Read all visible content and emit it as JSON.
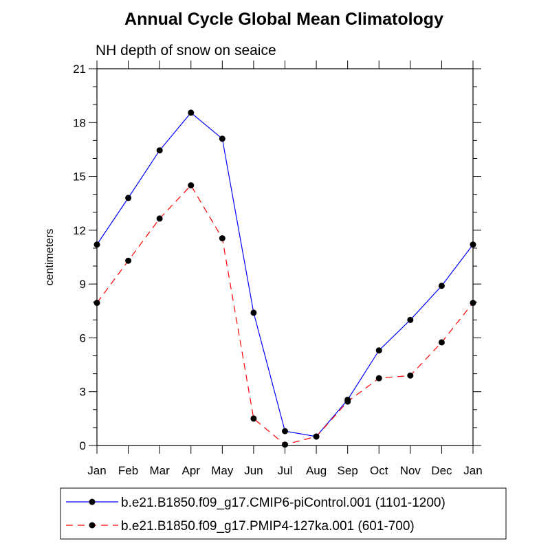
{
  "chart_data": {
    "type": "line",
    "title": "Annual Cycle Global Mean Climatology",
    "subtitle": "NH depth of snow on seaice",
    "xlabel": "",
    "ylabel": "centimeters",
    "categories": [
      "Jan",
      "Feb",
      "Mar",
      "Apr",
      "May",
      "Jun",
      "Jul",
      "Aug",
      "Sep",
      "Oct",
      "Nov",
      "Dec",
      "Jan"
    ],
    "ylim": [
      0,
      21
    ],
    "yticks": [
      0,
      3,
      6,
      9,
      12,
      15,
      18,
      21
    ],
    "grid": false,
    "legend_position": "bottom",
    "series": [
      {
        "name": "b.e21.B1850.f09_g17.CMIP6-piControl.001 (1101-1200)",
        "color": "#0000ff",
        "dash": "solid",
        "values": [
          11.2,
          13.8,
          16.45,
          18.55,
          17.1,
          7.4,
          0.8,
          0.5,
          2.55,
          5.3,
          7.0,
          8.9,
          11.2
        ]
      },
      {
        "name": "b.e21.B1850.f09_g17.PMIP4-127ka.001 (601-700)",
        "color": "#ff0000",
        "dash": "dashed",
        "values": [
          7.95,
          10.3,
          12.65,
          14.5,
          11.55,
          1.5,
          0.05,
          0.5,
          2.45,
          3.75,
          3.9,
          5.75,
          7.95
        ]
      }
    ]
  }
}
